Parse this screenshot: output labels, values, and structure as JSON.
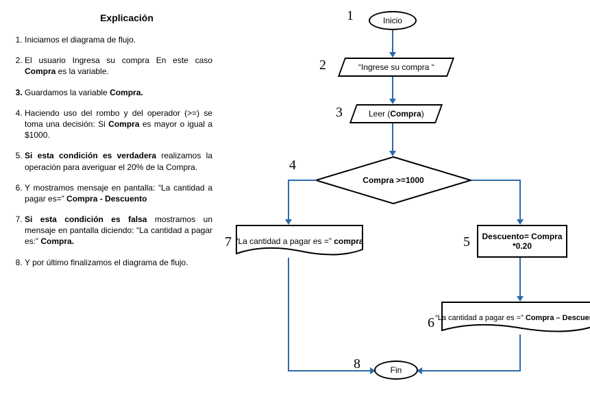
{
  "title": "Explicación",
  "steps": [
    {
      "html": "Iniciamos el diagrama de flujo."
    },
    {
      "html": "El usuario Ingresa su compra En este caso <b>Compra</b> es la variable."
    },
    {
      "html": "Guardamos la variable <b>Compra.</b>",
      "numBold": true
    },
    {
      "html": "Haciendo uso del rombo y del operador (>=) se toma una decisión: Si <b>Compra</b> es mayor o igual a $1000."
    },
    {
      "html": "<b>Si esta condición es verdadera</b> realizamos la operación para averiguar el 20% de la Compra."
    },
    {
      "html": "Y mostramos mensaje en pantalla: “La cantidad a pagar es=” <b>Compra - Descuento</b>"
    },
    {
      "html": "<b>Si esta condición es falsa</b> mostramos un mensaje en pantalla diciendo: “La cantidad a pagar es:” <b>Compra.</b>"
    },
    {
      "html": "Y por último finalizamos el diagrama de flujo."
    }
  ],
  "nodes": {
    "n1": "1",
    "n2": "2",
    "n3": "3",
    "n4": "4",
    "n5": "5",
    "n6": "6",
    "n7": "7",
    "n8": "8",
    "start": "Inicio",
    "input_html": "“Ingrese su compra “",
    "read_html": "Leer (<b>Compra</b>)",
    "decision_html": "<b>Compra &gt;=1000</b>",
    "proc_html": "<b>Descuento= Compra<br>*0.20</b>",
    "disp7_html": "“La cantidad a pagar es =” <b>compra</b>",
    "disp6_html": "“La cantidad a pagar es =” <b>Compra – Descuento</b>",
    "end": "Fin"
  },
  "colors": {
    "arrow": "#2b6aa8",
    "stroke": "#000000",
    "bg": "#ffffff"
  }
}
